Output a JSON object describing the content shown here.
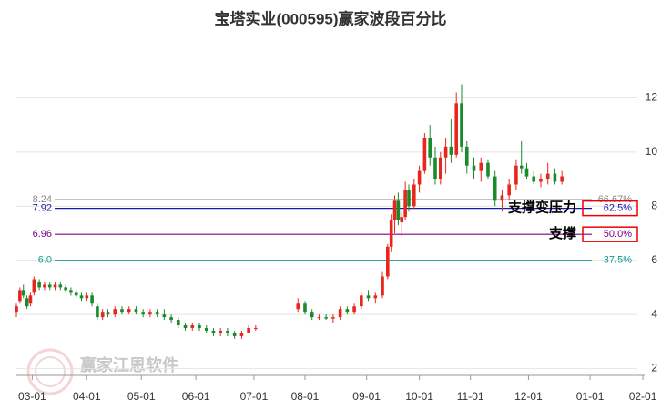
{
  "chart_data": {
    "type": "candlestick",
    "title": "宝塔实业(000595)赢家波段百分比",
    "watermark": "赢家江恩软件",
    "up_color": "#e8261d",
    "down_color": "#1a8a2a",
    "candles": {
      "x": [
        0,
        2,
        4,
        6,
        8,
        10,
        13,
        16,
        19,
        22,
        25,
        28,
        31,
        34,
        37,
        40,
        43,
        46,
        49,
        52,
        56,
        60,
        64,
        68,
        72,
        76,
        80,
        84,
        88,
        92,
        96,
        100,
        104,
        108,
        112,
        116,
        120,
        124,
        128,
        132,
        136,
        160,
        164,
        168,
        172,
        176,
        180,
        184,
        188,
        192,
        196,
        200,
        204,
        208,
        211,
        213,
        215,
        217,
        219,
        221,
        223,
        226,
        229,
        232,
        235,
        238,
        241,
        244,
        247,
        250,
        253,
        256,
        260,
        264,
        268,
        272,
        276,
        280,
        284,
        287,
        290,
        294,
        298,
        302,
        306,
        310
      ],
      "open": [
        4.1,
        4.5,
        4.9,
        4.6,
        4.4,
        4.8,
        5.2,
        5.0,
        5.1,
        5.0,
        5.1,
        5.0,
        4.9,
        4.8,
        4.7,
        4.6,
        4.7,
        4.3,
        3.9,
        4.1,
        4.0,
        4.2,
        4.1,
        4.2,
        4.1,
        4.0,
        4.1,
        4.0,
        3.9,
        3.8,
        3.6,
        3.5,
        3.6,
        3.5,
        3.4,
        3.3,
        3.4,
        3.3,
        3.2,
        3.3,
        3.5,
        4.2,
        4.4,
        4.1,
        3.9,
        3.9,
        3.85,
        3.9,
        4.2,
        4.1,
        4.3,
        4.7,
        4.6,
        4.7,
        5.4,
        6.5,
        7.5,
        8.2,
        7.4,
        7.6,
        8.6,
        8.0,
        8.8,
        9.3,
        10.5,
        9.8,
        9.0,
        9.8,
        10.2,
        9.9,
        11.8,
        10.2,
        9.5,
        9.3,
        9.6,
        9.1,
        8.2,
        8.4,
        8.8,
        9.5,
        9.4,
        9.1,
        8.9,
        9.0,
        9.2,
        8.9
      ],
      "high": [
        4.4,
        5.0,
        5.1,
        4.7,
        4.8,
        5.4,
        5.3,
        5.2,
        5.2,
        5.2,
        5.2,
        5.1,
        5.0,
        4.9,
        4.8,
        4.8,
        4.8,
        4.4,
        4.2,
        4.2,
        4.3,
        4.3,
        4.3,
        4.3,
        4.2,
        4.2,
        4.2,
        4.2,
        4.0,
        3.9,
        3.7,
        3.7,
        3.7,
        3.6,
        3.5,
        3.5,
        3.5,
        3.4,
        3.4,
        3.6,
        3.6,
        4.6,
        4.5,
        4.2,
        4.0,
        4.0,
        4.0,
        4.3,
        4.3,
        4.4,
        4.8,
        4.9,
        4.8,
        5.6,
        6.6,
        7.7,
        8.4,
        8.5,
        7.8,
        8.9,
        8.8,
        9.0,
        9.5,
        10.7,
        11.0,
        10.2,
        10.0,
        10.5,
        11.2,
        12.2,
        12.5,
        10.4,
        9.8,
        9.8,
        9.7,
        9.3,
        8.6,
        9.0,
        9.7,
        10.4,
        9.6,
        9.3,
        9.2,
        9.6,
        9.4,
        9.3
      ],
      "low": [
        3.9,
        4.4,
        4.6,
        4.2,
        4.3,
        4.7,
        4.9,
        4.9,
        4.9,
        4.9,
        4.9,
        4.8,
        4.7,
        4.6,
        4.5,
        4.5,
        4.3,
        3.8,
        3.8,
        3.9,
        3.9,
        4.0,
        4.0,
        4.0,
        3.9,
        3.9,
        3.9,
        3.8,
        3.7,
        3.5,
        3.4,
        3.4,
        3.4,
        3.3,
        3.2,
        3.2,
        3.2,
        3.1,
        3.1,
        3.3,
        3.4,
        4.1,
        4.0,
        3.8,
        3.8,
        3.8,
        3.7,
        3.8,
        4.0,
        4.0,
        4.2,
        4.5,
        4.4,
        4.6,
        5.3,
        6.3,
        7.0,
        7.3,
        6.9,
        7.5,
        7.8,
        7.9,
        8.5,
        9.2,
        9.5,
        8.8,
        8.8,
        9.2,
        9.6,
        9.8,
        10.0,
        9.2,
        9.0,
        8.9,
        9.0,
        8.0,
        7.8,
        8.2,
        8.6,
        9.2,
        9.0,
        8.8,
        8.7,
        8.8,
        8.8,
        8.8
      ],
      "close": [
        4.3,
        4.9,
        4.7,
        4.3,
        4.7,
        5.3,
        5.0,
        5.1,
        5.0,
        5.1,
        5.0,
        4.9,
        4.8,
        4.7,
        4.6,
        4.7,
        4.4,
        3.9,
        4.1,
        4.0,
        4.2,
        4.1,
        4.2,
        4.1,
        4.0,
        4.1,
        4.0,
        3.9,
        3.8,
        3.6,
        3.5,
        3.6,
        3.5,
        3.4,
        3.3,
        3.4,
        3.3,
        3.2,
        3.3,
        3.5,
        3.5,
        4.4,
        4.1,
        3.9,
        3.9,
        3.85,
        3.9,
        4.2,
        4.1,
        4.3,
        4.7,
        4.6,
        4.7,
        5.4,
        6.5,
        7.5,
        8.2,
        7.5,
        7.6,
        8.6,
        8.0,
        8.8,
        9.3,
        10.5,
        9.8,
        9.0,
        9.8,
        10.2,
        9.9,
        11.8,
        10.2,
        9.5,
        9.3,
        9.6,
        9.1,
        8.2,
        8.4,
        8.8,
        9.5,
        9.4,
        9.1,
        8.9,
        9.0,
        9.2,
        8.9,
        9.1
      ]
    },
    "xlim": [
      0,
      357
    ],
    "xticks": [
      {
        "value": 9,
        "label": "03-01"
      },
      {
        "value": 40,
        "label": "04-01"
      },
      {
        "value": 71,
        "label": "05-01"
      },
      {
        "value": 102,
        "label": "06-01"
      },
      {
        "value": 135,
        "label": "07-01"
      },
      {
        "value": 164,
        "label": "08-01"
      },
      {
        "value": 199,
        "label": "09-01"
      },
      {
        "value": 229,
        "label": "10-01"
      },
      {
        "value": 258,
        "label": "11-01"
      },
      {
        "value": 291,
        "label": "12-01"
      },
      {
        "value": 326,
        "label": "01-01"
      },
      {
        "value": 356,
        "label": "02-01"
      }
    ],
    "ylim": [
      1.75,
      14.2
    ],
    "yticks": [
      2,
      4,
      6,
      8,
      10,
      12
    ],
    "grid": true,
    "levels": {
      "values": [
        8.24,
        7.92,
        6.96,
        6.0
      ],
      "value_labels": [
        "8.24",
        "7.92",
        "6.96",
        "6.0"
      ],
      "percents": [
        "66.67%",
        "62.5%",
        "50.0%",
        "37.5%"
      ],
      "colors": [
        "#888888",
        "#1a1aa8",
        "#800080",
        "#159a8c"
      ],
      "notes": [
        null,
        "支撑变压力",
        "支撑",
        null
      ]
    }
  }
}
